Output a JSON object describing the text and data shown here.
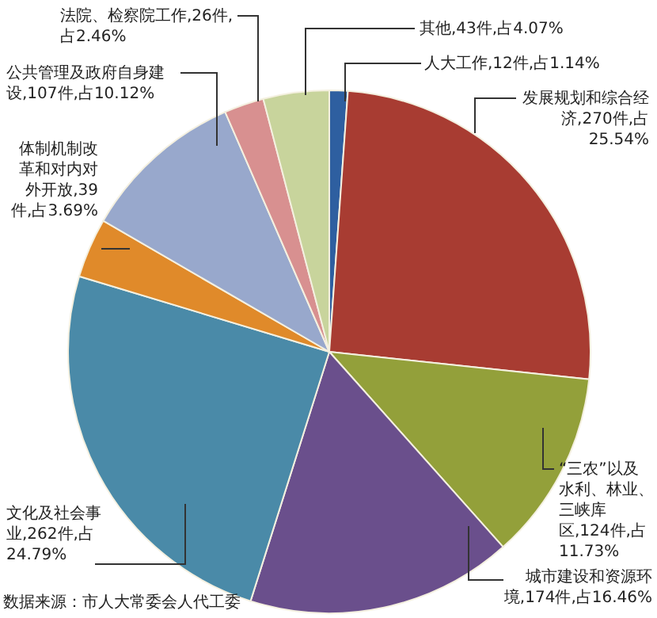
{
  "chart_data": {
    "type": "pie",
    "categories": [
      "人大工作",
      "发展规划和综合经济",
      "“三农”以及水利、林业、三峡库区",
      "城市建设和资源环境",
      "文化及社会事业",
      "体制机制改革和对内对外开放",
      "公共管理及政府自身建设",
      "法院、检察院工作",
      "其他"
    ],
    "values": [
      12,
      270,
      124,
      174,
      262,
      39,
      107,
      26,
      43
    ],
    "value_labels": [
      "12件,占1.14%",
      "270件,占25.54%",
      "124件,占11.73%",
      "174件,占16.46%",
      "262件,占24.79%",
      "39件,占3.69%",
      "107件,占10.12%",
      "26件,占2.46%",
      "43件,占4.07%"
    ],
    "colors": [
      "#2e5fa0",
      "#a83c32",
      "#93a03a",
      "#6a4f8c",
      "#4a8aa8",
      "#e08a2a",
      "#98a8cc",
      "#d89090",
      "#c8d49c"
    ],
    "annotations": [
      "数据来源：市人大常委会人代工委"
    ]
  }
}
